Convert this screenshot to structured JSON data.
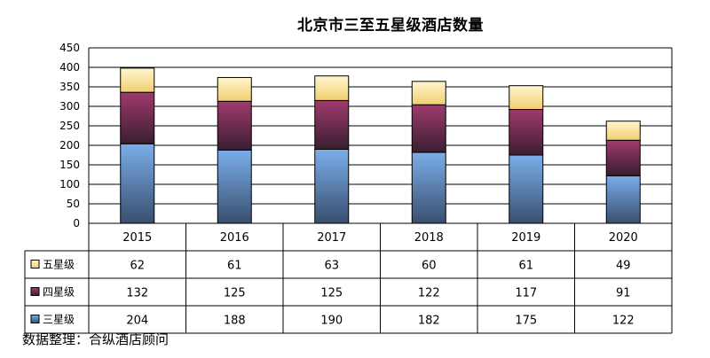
{
  "chart_data": {
    "type": "bar",
    "stacked": true,
    "title": "北京市三至五星级酒店数量",
    "categories": [
      "2015",
      "2016",
      "2017",
      "2018",
      "2019",
      "2020"
    ],
    "series": [
      {
        "name": "三星级",
        "values": [
          204,
          188,
          190,
          182,
          175,
          122
        ],
        "color": "#7aaeea",
        "color_dark": "#3a4e6e"
      },
      {
        "name": "四星级",
        "values": [
          132,
          125,
          125,
          122,
          117,
          91
        ],
        "color": "#a03a6e",
        "color_dark": "#3a1e30"
      },
      {
        "name": "五星级",
        "values": [
          62,
          61,
          63,
          60,
          61,
          49
        ],
        "color": "#fff6cf",
        "color_dark": "#f2cf70"
      }
    ],
    "ylim": [
      0,
      450
    ],
    "yticks": [
      0,
      50,
      100,
      150,
      200,
      250,
      300,
      350,
      400,
      450
    ],
    "grid": true,
    "legend": "data-table-left"
  },
  "source": "数据整理：合纵酒店顾问"
}
